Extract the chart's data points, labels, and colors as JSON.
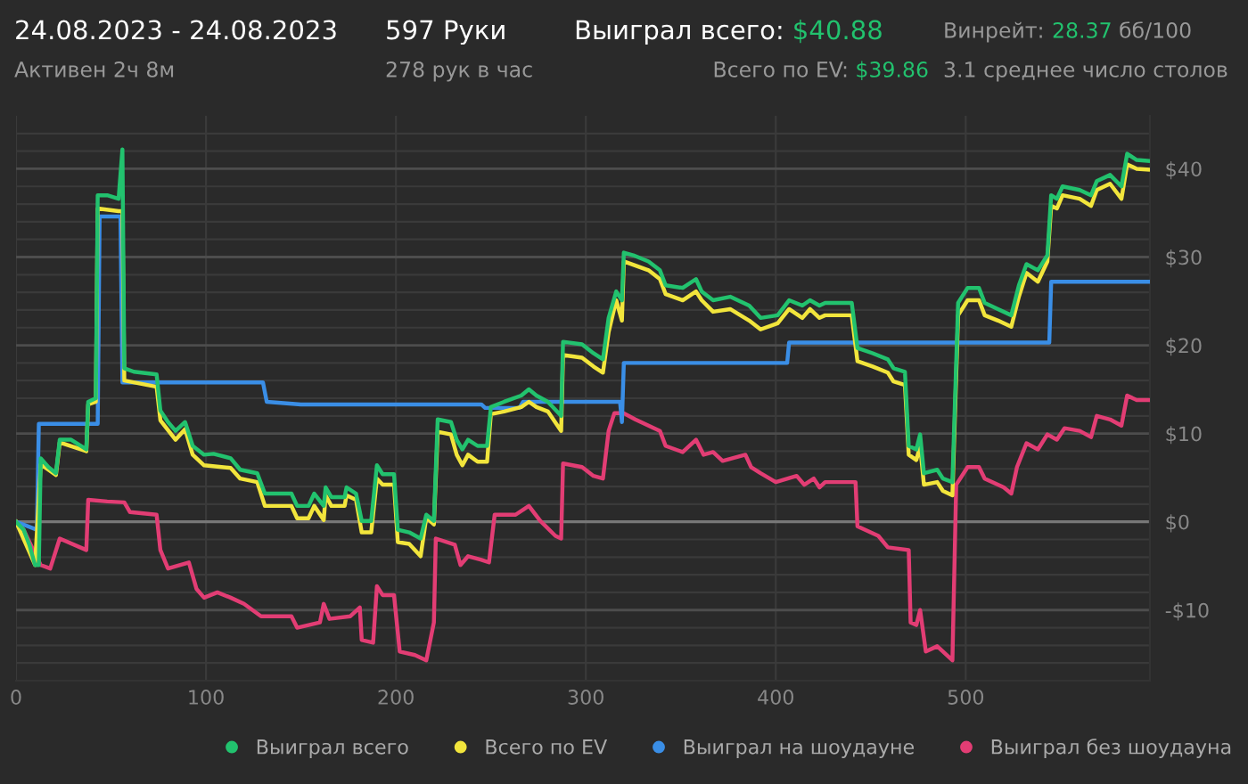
{
  "chart_data": {
    "type": "line",
    "title": "24.08.2023 - 24.08.2023",
    "subtitle": "Активен 2ч 8м",
    "annotations": [
      "597 Руки",
      "278 рук в час",
      "Выиграл всего:",
      "$40.88",
      "Всего по EV:",
      "$39.86",
      "Винрейт:",
      "28.37",
      "бб/100",
      "3.1 среднее число столов"
    ],
    "xlim": [
      0,
      597
    ],
    "ylim": [
      -18,
      46
    ],
    "xticks": [
      0,
      100,
      200,
      300,
      400,
      500
    ],
    "yticks": [
      {
        "value": -16,
        "label": null
      },
      {
        "value": -14,
        "label": null
      },
      {
        "value": -12,
        "label": null
      },
      {
        "value": -10,
        "label": "-$10"
      },
      {
        "value": -8,
        "label": null
      },
      {
        "value": -6,
        "label": null
      },
      {
        "value": -4,
        "label": null
      },
      {
        "value": -2,
        "label": null
      },
      {
        "value": 0,
        "label": "$0"
      },
      {
        "value": 2,
        "label": null
      },
      {
        "value": 4,
        "label": null
      },
      {
        "value": 6,
        "label": null
      },
      {
        "value": 8,
        "label": null
      },
      {
        "value": 10,
        "label": "$10"
      },
      {
        "value": 12,
        "label": null
      },
      {
        "value": 14,
        "label": null
      },
      {
        "value": 16,
        "label": null
      },
      {
        "value": 18,
        "label": null
      },
      {
        "value": 20,
        "label": "$20"
      },
      {
        "value": 22,
        "label": null
      },
      {
        "value": 24,
        "label": null
      },
      {
        "value": 26,
        "label": null
      },
      {
        "value": 28,
        "label": null
      },
      {
        "value": 30,
        "label": "$30"
      },
      {
        "value": 32,
        "label": null
      },
      {
        "value": 34,
        "label": null
      },
      {
        "value": 36,
        "label": null
      },
      {
        "value": 38,
        "label": null
      },
      {
        "value": 40,
        "label": "$40"
      },
      {
        "value": 42,
        "label": null
      },
      {
        "value": 44,
        "label": null
      }
    ],
    "grid": true,
    "legend": "bottom",
    "marker": "none",
    "line_style": "solid",
    "series": [
      {
        "name": "Выиграл всего",
        "color": "#22c26e",
        "x": [
          0,
          4,
          7,
          10,
          12,
          13,
          17,
          21,
          23,
          29,
          37,
          38,
          42,
          43,
          48,
          54,
          56,
          57,
          62,
          74,
          76,
          80,
          84,
          89,
          93,
          99,
          104,
          113,
          118,
          127,
          131,
          145,
          148,
          154,
          157,
          162,
          163,
          166,
          173,
          174,
          179,
          182,
          187,
          190,
          193,
          199,
          201,
          207,
          213,
          216,
          220,
          222,
          229,
          232,
          235,
          238,
          243,
          248,
          250,
          257,
          266,
          270,
          274,
          280,
          287,
          288,
          298,
          304,
          309,
          312,
          316,
          319,
          320,
          325,
          333,
          339,
          342,
          351,
          358,
          361,
          367,
          376,
          386,
          392,
          401,
          407,
          414,
          418,
          423,
          426,
          440,
          443,
          451,
          459,
          462,
          468,
          470,
          474,
          476,
          478,
          485,
          488,
          493,
          496,
          501,
          507,
          510,
          517,
          524,
          528,
          532,
          538,
          543,
          545,
          548,
          551,
          560,
          566,
          569,
          576,
          582,
          585,
          590,
          596
        ],
        "values": [
          0,
          -0.9,
          -2.6,
          -4.9,
          -4.9,
          7.2,
          6.2,
          5.5,
          9.3,
          9.3,
          8.2,
          13.6,
          14,
          37,
          37,
          36.6,
          42.2,
          17.4,
          17,
          16.7,
          12.6,
          11.3,
          10.3,
          11.3,
          8.6,
          7.6,
          7.7,
          7.2,
          5.9,
          5.5,
          3.2,
          3.2,
          1.8,
          1.8,
          3.2,
          1.8,
          3.9,
          2.8,
          2.8,
          3.9,
          3.2,
          0.1,
          0.1,
          6.4,
          5.4,
          5.4,
          -0.9,
          -1.2,
          -1.9,
          0.8,
          0.1,
          11.6,
          11.3,
          9.3,
          8.2,
          9.3,
          8.6,
          8.6,
          13,
          13.6,
          14.3,
          15,
          14.3,
          13.6,
          12,
          20.4,
          20.1,
          19.1,
          18.4,
          23.1,
          26.1,
          25.1,
          30.5,
          30.2,
          29.5,
          28.5,
          26.8,
          26.5,
          27.5,
          26.1,
          25.1,
          25.5,
          24.5,
          23.1,
          23.4,
          25.1,
          24.5,
          25.1,
          24.5,
          24.8,
          24.8,
          19.7,
          19.1,
          18.4,
          17.4,
          17,
          8.6,
          8.2,
          9.9,
          5.5,
          5.9,
          4.9,
          4.5,
          24.8,
          26.5,
          26.5,
          24.8,
          24.1,
          23.4,
          26.8,
          29.2,
          28.5,
          30.2,
          37,
          36.6,
          38,
          37.6,
          37,
          38.6,
          39.3,
          38,
          41.7,
          41,
          40.9
        ]
      },
      {
        "name": "Всего по EV",
        "color": "#f2e53c",
        "x": [
          0,
          10,
          13,
          21,
          23,
          37,
          38,
          42,
          43,
          54,
          56,
          57,
          74,
          76,
          84,
          89,
          93,
          99,
          113,
          118,
          127,
          131,
          145,
          148,
          154,
          157,
          162,
          163,
          166,
          173,
          174,
          179,
          182,
          187,
          190,
          193,
          199,
          201,
          207,
          213,
          216,
          220,
          222,
          229,
          232,
          235,
          238,
          243,
          248,
          250,
          257,
          266,
          270,
          274,
          280,
          287,
          288,
          298,
          304,
          309,
          312,
          316,
          319,
          320,
          333,
          339,
          342,
          351,
          358,
          361,
          367,
          376,
          386,
          392,
          401,
          407,
          414,
          418,
          423,
          426,
          440,
          443,
          451,
          459,
          462,
          468,
          470,
          474,
          476,
          478,
          485,
          488,
          493,
          496,
          501,
          507,
          510,
          517,
          524,
          528,
          532,
          538,
          543,
          545,
          548,
          551,
          560,
          566,
          569,
          576,
          582,
          585,
          590,
          596
        ],
        "values": [
          0,
          -4.9,
          6.5,
          5.3,
          9,
          8,
          13.3,
          13.6,
          35.5,
          35.2,
          35.2,
          16,
          15.3,
          11.5,
          9.3,
          10.5,
          7.6,
          6.4,
          6.1,
          4.9,
          4.5,
          1.8,
          1.8,
          0.4,
          0.4,
          1.8,
          0.2,
          3,
          1.8,
          1.8,
          3,
          2.5,
          -1.2,
          -1.2,
          4.9,
          4.2,
          4.2,
          -2.3,
          -2.5,
          -3.9,
          0.5,
          -0.3,
          10.2,
          9.9,
          7.6,
          6.4,
          7.6,
          6.8,
          6.8,
          12.2,
          12.5,
          13,
          13.6,
          13,
          12.5,
          10.3,
          18.9,
          18.6,
          17.6,
          16.9,
          21.5,
          25.1,
          22.8,
          29.5,
          28.5,
          27.5,
          25.8,
          25.1,
          26.1,
          25.1,
          23.8,
          24.1,
          22.8,
          21.8,
          22.5,
          24.1,
          23.1,
          24.1,
          23.1,
          23.4,
          23.4,
          18.2,
          17.6,
          16.9,
          15.9,
          15.5,
          7.6,
          7,
          8.6,
          4.2,
          4.5,
          3.5,
          3,
          23.4,
          25.1,
          25.1,
          23.4,
          22.8,
          22.1,
          25.5,
          28.2,
          27.2,
          29.5,
          35.8,
          35.5,
          37,
          36.6,
          35.8,
          37.6,
          38.3,
          36.6,
          40.5,
          40,
          39.9
        ]
      },
      {
        "name": "Выиграл на шоудауне",
        "color": "#3a8ee6",
        "x": [
          0,
          11,
          12,
          43,
          44,
          55,
          56,
          130,
          132,
          150,
          245,
          247,
          265,
          267,
          318,
          319,
          320,
          406,
          407,
          544,
          545,
          597
        ],
        "values": [
          0,
          -0.9,
          11.1,
          11.1,
          34.6,
          34.6,
          15.8,
          15.8,
          13.6,
          13.3,
          13.3,
          12.9,
          12.9,
          13.6,
          13.6,
          11.3,
          18,
          18,
          20.3,
          20.3,
          27.2,
          27.2
        ]
      },
      {
        "name": "Выиграл без шоудауна",
        "color": "#e23d74",
        "x": [
          0,
          4,
          10,
          13,
          18,
          23,
          37,
          38,
          48,
          57,
          60,
          74,
          76,
          80,
          91,
          95,
          99,
          106,
          113,
          120,
          129,
          145,
          148,
          160,
          162,
          165,
          176,
          181,
          182,
          188,
          190,
          193,
          199,
          202,
          210,
          216,
          220,
          221,
          231,
          234,
          238,
          245,
          249,
          252,
          263,
          270,
          276,
          284,
          287,
          288,
          298,
          304,
          309,
          312,
          315,
          320,
          326,
          339,
          342,
          351,
          358,
          362,
          367,
          372,
          384,
          387,
          392,
          400,
          411,
          415,
          420,
          423,
          426,
          442,
          443,
          454,
          459,
          470,
          471,
          474,
          476,
          479,
          485,
          493,
          495,
          501,
          507,
          510,
          520,
          524,
          527,
          532,
          538,
          543,
          548,
          552,
          560,
          566,
          569,
          576,
          582,
          585,
          590,
          596
        ],
        "values": [
          0,
          -0.9,
          -3.6,
          -4.9,
          -5.3,
          -1.9,
          -3.2,
          2.5,
          2.3,
          2.2,
          1.1,
          0.8,
          -3.2,
          -5.3,
          -4.6,
          -7.6,
          -8.6,
          -8,
          -8.6,
          -9.3,
          -10.7,
          -10.7,
          -12,
          -11.4,
          -9.3,
          -11,
          -10.7,
          -9.7,
          -13.4,
          -13.7,
          -7.3,
          -8.3,
          -8.3,
          -14.7,
          -15.1,
          -15.7,
          -11.4,
          -1.9,
          -2.6,
          -4.9,
          -3.9,
          -4.3,
          -4.6,
          0.8,
          0.8,
          1.8,
          0.1,
          -1.6,
          -1.9,
          6.6,
          6.2,
          5.2,
          4.9,
          10.3,
          12.3,
          12.3,
          11.6,
          10.3,
          8.6,
          7.9,
          9.3,
          7.6,
          7.9,
          6.9,
          7.6,
          6.2,
          5.5,
          4.5,
          5.2,
          4.2,
          4.9,
          3.9,
          4.5,
          4.5,
          -0.5,
          -1.6,
          -2.9,
          -3.2,
          -11.4,
          -11.7,
          -10,
          -14.7,
          -14.1,
          -15.7,
          4.2,
          6.2,
          6.2,
          4.9,
          3.9,
          3.2,
          6.2,
          8.9,
          8.2,
          9.9,
          9.3,
          10.6,
          10.3,
          9.6,
          12,
          11.6,
          10.9,
          14.3,
          13.8,
          13.8
        ]
      }
    ]
  }
}
